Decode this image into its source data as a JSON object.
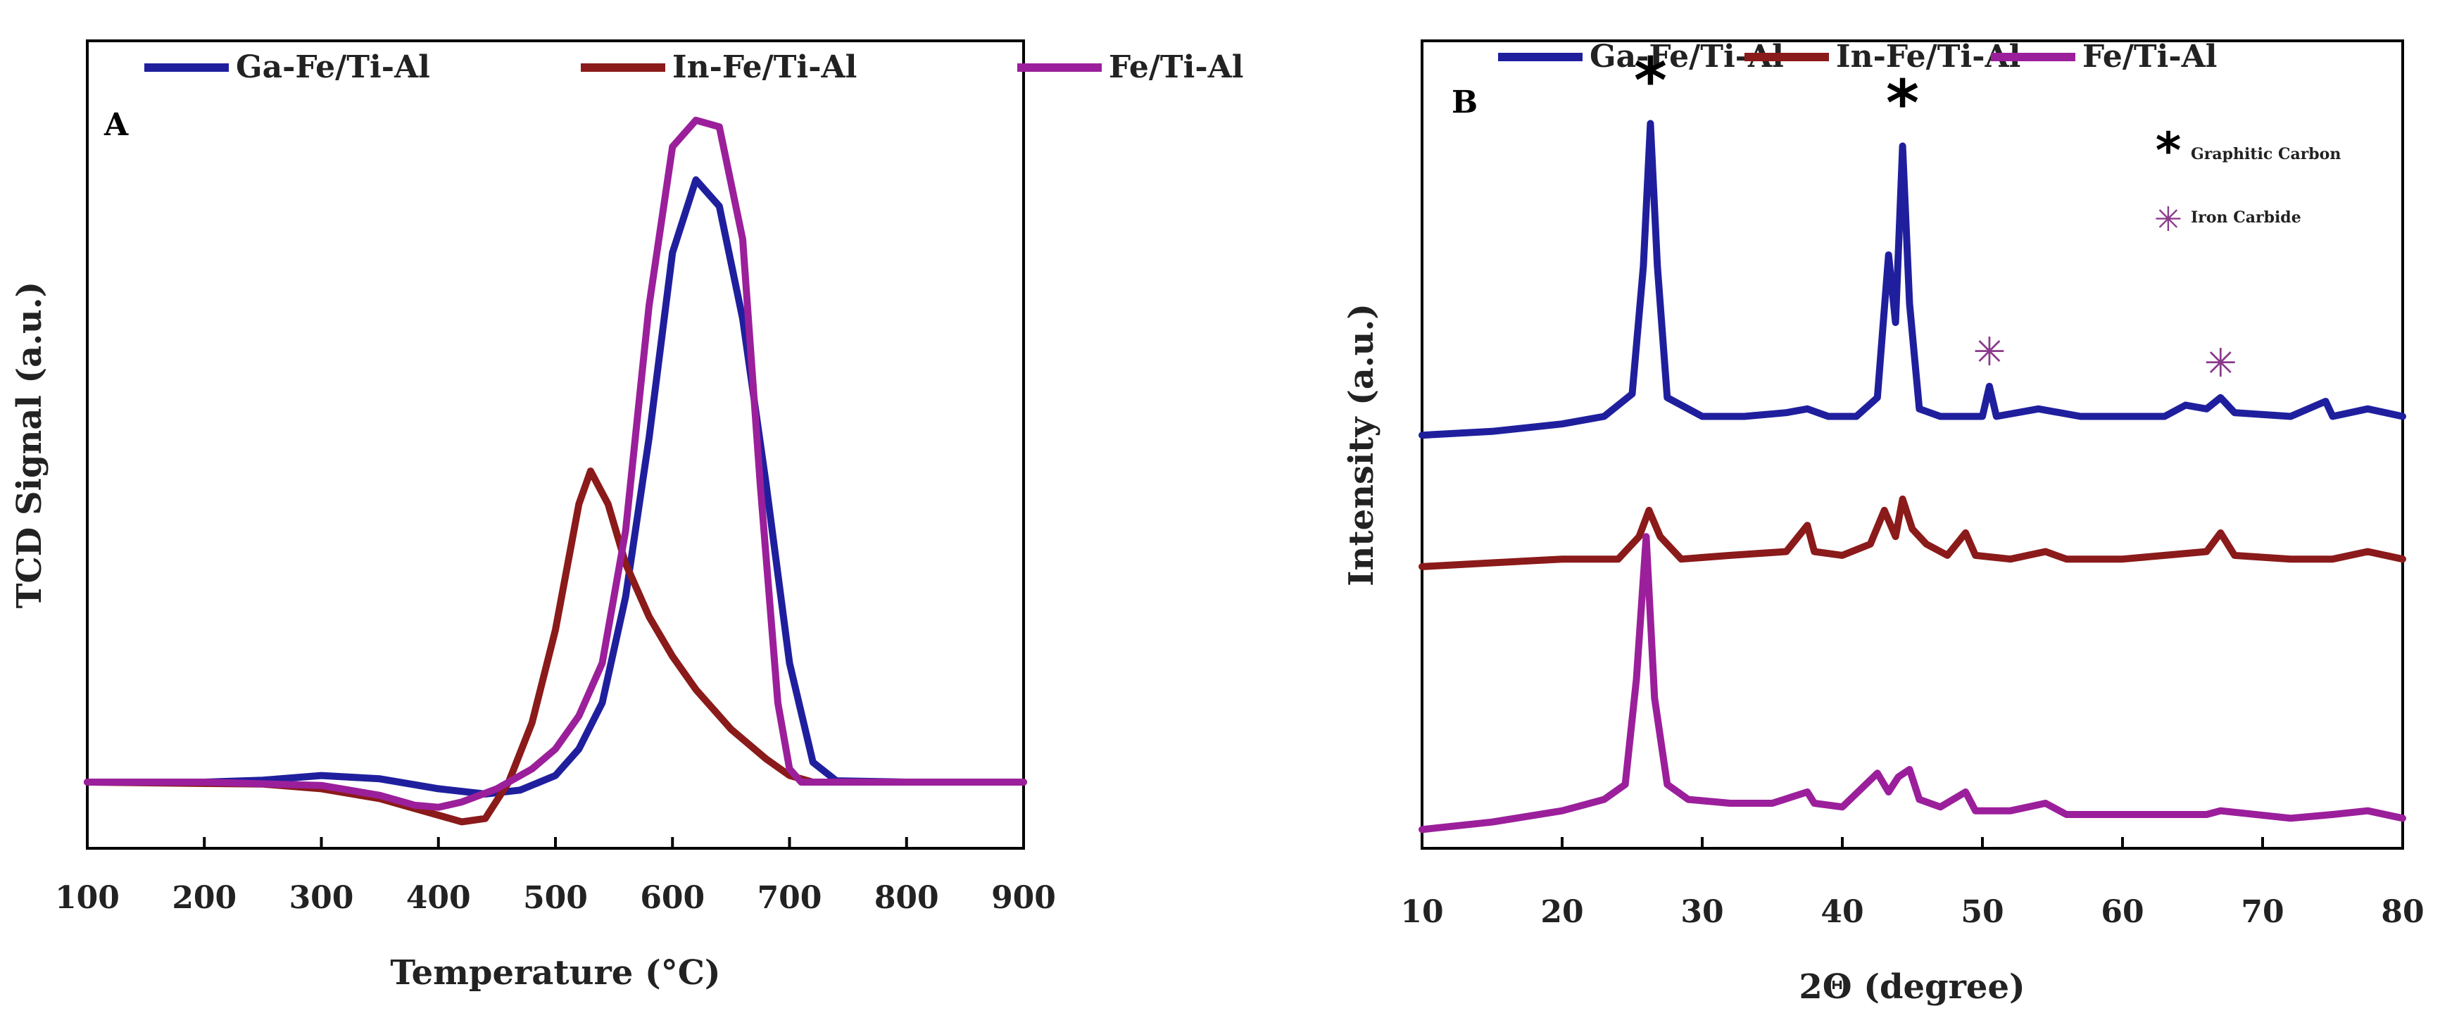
{
  "chart_data": [
    {
      "type": "line",
      "panel_label": "A",
      "xlabel": "Temperature (°C)",
      "ylabel": "TCD Signal (a.u.)",
      "xlim": [
        100,
        900
      ],
      "ylim": [
        -0.1,
        1.12
      ],
      "x_ticks": [
        "100",
        "200",
        "300",
        "400",
        "500",
        "600",
        "700",
        "800",
        "900"
      ],
      "y_ticks_shown": false,
      "legend_position": "top",
      "series": [
        {
          "name": "Ga-Fe/Ti-Al",
          "color": "#1f1f9e",
          "points": [
            [
              100,
              0.0
            ],
            [
              200,
              0.0
            ],
            [
              250,
              0.003
            ],
            [
              300,
              0.01
            ],
            [
              350,
              0.005
            ],
            [
              400,
              -0.01
            ],
            [
              440,
              -0.018
            ],
            [
              470,
              -0.012
            ],
            [
              500,
              0.01
            ],
            [
              520,
              0.05
            ],
            [
              540,
              0.12
            ],
            [
              560,
              0.28
            ],
            [
              580,
              0.52
            ],
            [
              600,
              0.8
            ],
            [
              620,
              0.91
            ],
            [
              640,
              0.87
            ],
            [
              660,
              0.7
            ],
            [
              680,
              0.45
            ],
            [
              700,
              0.18
            ],
            [
              720,
              0.03
            ],
            [
              740,
              0.002
            ],
            [
              800,
              0.0
            ],
            [
              900,
              0.0
            ]
          ]
        },
        {
          "name": "In-Fe/Ti-Al",
          "color": "#8b1a1a",
          "points": [
            [
              100,
              0.0
            ],
            [
              250,
              -0.003
            ],
            [
              300,
              -0.01
            ],
            [
              350,
              -0.025
            ],
            [
              390,
              -0.045
            ],
            [
              420,
              -0.06
            ],
            [
              440,
              -0.055
            ],
            [
              460,
              0.0
            ],
            [
              480,
              0.09
            ],
            [
              500,
              0.23
            ],
            [
              520,
              0.42
            ],
            [
              530,
              0.47
            ],
            [
              545,
              0.42
            ],
            [
              560,
              0.33
            ],
            [
              580,
              0.25
            ],
            [
              600,
              0.19
            ],
            [
              620,
              0.14
            ],
            [
              650,
              0.08
            ],
            [
              680,
              0.035
            ],
            [
              700,
              0.01
            ],
            [
              720,
              0.0
            ],
            [
              900,
              0.0
            ]
          ]
        },
        {
          "name": "Fe/Ti-Al",
          "color": "#9b1f9b",
          "points": [
            [
              100,
              0.0
            ],
            [
              200,
              0.0
            ],
            [
              300,
              -0.005
            ],
            [
              350,
              -0.02
            ],
            [
              380,
              -0.035
            ],
            [
              400,
              -0.038
            ],
            [
              420,
              -0.03
            ],
            [
              450,
              -0.01
            ],
            [
              480,
              0.02
            ],
            [
              500,
              0.05
            ],
            [
              520,
              0.1
            ],
            [
              540,
              0.18
            ],
            [
              560,
              0.38
            ],
            [
              580,
              0.72
            ],
            [
              600,
              0.96
            ],
            [
              620,
              1.0
            ],
            [
              640,
              0.99
            ],
            [
              660,
              0.82
            ],
            [
              675,
              0.45
            ],
            [
              690,
              0.12
            ],
            [
              700,
              0.02
            ],
            [
              710,
              0.0
            ],
            [
              900,
              0.0
            ]
          ]
        }
      ]
    },
    {
      "type": "line",
      "panel_label": "B",
      "xlabel": "2Θ (degree)",
      "ylabel": "Intensity (a.u.)",
      "xlim": [
        10,
        80
      ],
      "ylim": [
        -0.05,
        2.1
      ],
      "x_ticks": [
        "10",
        "20",
        "30",
        "40",
        "50",
        "60",
        "70",
        "80"
      ],
      "y_ticks_shown": false,
      "legend_position": "top",
      "series": [
        {
          "name": "Ga-Fe/Ti-Al",
          "color": "#1f1f9e",
          "points": [
            [
              10,
              1.05
            ],
            [
              15,
              1.06
            ],
            [
              20,
              1.08
            ],
            [
              23,
              1.1
            ],
            [
              25,
              1.16
            ],
            [
              25.8,
              1.5
            ],
            [
              26.3,
              1.88
            ],
            [
              26.8,
              1.5
            ],
            [
              27.5,
              1.15
            ],
            [
              30,
              1.1
            ],
            [
              33,
              1.1
            ],
            [
              36,
              1.11
            ],
            [
              37.5,
              1.12
            ],
            [
              39,
              1.1
            ],
            [
              41,
              1.1
            ],
            [
              42.5,
              1.15
            ],
            [
              43.3,
              1.53
            ],
            [
              43.8,
              1.35
            ],
            [
              44.3,
              1.82
            ],
            [
              44.8,
              1.4
            ],
            [
              45.5,
              1.12
            ],
            [
              47,
              1.1
            ],
            [
              50,
              1.1
            ],
            [
              50.5,
              1.18
            ],
            [
              51,
              1.1
            ],
            [
              54,
              1.12
            ],
            [
              57,
              1.1
            ],
            [
              60,
              1.1
            ],
            [
              63,
              1.1
            ],
            [
              64.5,
              1.13
            ],
            [
              66,
              1.12
            ],
            [
              67,
              1.15
            ],
            [
              68,
              1.11
            ],
            [
              72,
              1.1
            ],
            [
              74.5,
              1.14
            ],
            [
              75,
              1.1
            ],
            [
              77.5,
              1.12
            ],
            [
              80,
              1.1
            ]
          ]
        },
        {
          "name": "In-Fe/Ti-Al",
          "color": "#8b1a1a",
          "points": [
            [
              10,
              0.7
            ],
            [
              15,
              0.71
            ],
            [
              20,
              0.72
            ],
            [
              24,
              0.72
            ],
            [
              25.5,
              0.78
            ],
            [
              26.2,
              0.85
            ],
            [
              27,
              0.78
            ],
            [
              28.5,
              0.72
            ],
            [
              32,
              0.73
            ],
            [
              36,
              0.74
            ],
            [
              37.5,
              0.81
            ],
            [
              38,
              0.74
            ],
            [
              40,
              0.73
            ],
            [
              42,
              0.76
            ],
            [
              43,
              0.85
            ],
            [
              43.8,
              0.78
            ],
            [
              44.3,
              0.88
            ],
            [
              45,
              0.8
            ],
            [
              46,
              0.76
            ],
            [
              47.5,
              0.73
            ],
            [
              48.8,
              0.79
            ],
            [
              49.5,
              0.73
            ],
            [
              52,
              0.72
            ],
            [
              54.5,
              0.74
            ],
            [
              56,
              0.72
            ],
            [
              60,
              0.72
            ],
            [
              63,
              0.73
            ],
            [
              66,
              0.74
            ],
            [
              67,
              0.79
            ],
            [
              68,
              0.73
            ],
            [
              72,
              0.72
            ],
            [
              75,
              0.72
            ],
            [
              77.5,
              0.74
            ],
            [
              80,
              0.72
            ]
          ]
        },
        {
          "name": "Fe/Ti-Al",
          "color": "#9b1f9b",
          "points": [
            [
              10,
              0.0
            ],
            [
              15,
              0.02
            ],
            [
              20,
              0.05
            ],
            [
              23,
              0.08
            ],
            [
              24.5,
              0.12
            ],
            [
              25.3,
              0.4
            ],
            [
              26.0,
              0.78
            ],
            [
              26.6,
              0.35
            ],
            [
              27.5,
              0.12
            ],
            [
              29,
              0.08
            ],
            [
              32,
              0.07
            ],
            [
              35,
              0.07
            ],
            [
              37.5,
              0.1
            ],
            [
              38,
              0.07
            ],
            [
              40,
              0.06
            ],
            [
              42.5,
              0.15
            ],
            [
              43.3,
              0.1
            ],
            [
              44,
              0.14
            ],
            [
              44.8,
              0.16
            ],
            [
              45.5,
              0.08
            ],
            [
              47,
              0.06
            ],
            [
              48.8,
              0.1
            ],
            [
              49.5,
              0.05
            ],
            [
              52,
              0.05
            ],
            [
              54.5,
              0.07
            ],
            [
              56,
              0.04
            ],
            [
              60,
              0.04
            ],
            [
              63,
              0.04
            ],
            [
              66,
              0.04
            ],
            [
              67,
              0.05
            ],
            [
              72,
              0.03
            ],
            [
              75,
              0.04
            ],
            [
              77.5,
              0.05
            ],
            [
              80,
              0.03
            ]
          ]
        }
      ],
      "annotations": [
        {
          "symbol": "*",
          "label": "Graphitic Carbon",
          "color": "#000000",
          "at_x": [
            26.3,
            44.3
          ]
        },
        {
          "symbol": "✳",
          "label": "Iron Carbide",
          "color": "#8b3a8b",
          "at_x": [
            50.5,
            67.0
          ]
        }
      ]
    }
  ]
}
